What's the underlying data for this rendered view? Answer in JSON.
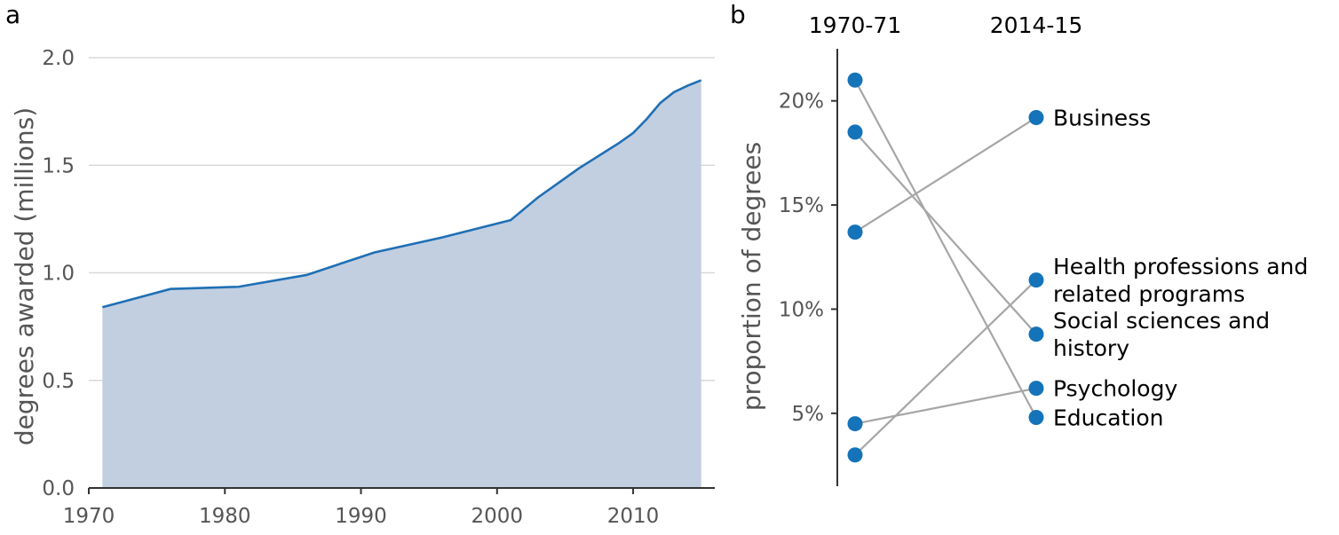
{
  "panel_a": {
    "tag": "a"
  },
  "panel_b": {
    "tag": "b"
  },
  "colors": {
    "area_fill": "#c2cfe1",
    "line": "#1f6fb4",
    "dot": "#1473b9",
    "slope": "#a6a6a6"
  },
  "chart_data": [
    {
      "type": "area",
      "xlabel": "",
      "ylabel": "degrees awarded (millions)",
      "xlim": [
        1970,
        2016
      ],
      "ylim": [
        0,
        2.0
      ],
      "xticks": [
        1970,
        1980,
        1990,
        2000,
        2010
      ],
      "yticks": [
        "0.0",
        "0.5",
        "1.0",
        "1.5",
        "2.0"
      ],
      "grid": "horizontal",
      "x": [
        1971,
        1976,
        1981,
        1986,
        1991,
        1996,
        2001,
        2003,
        2005,
        2006,
        2007,
        2008,
        2009,
        2010,
        2011,
        2012,
        2013,
        2014,
        2015
      ],
      "y": [
        0.84,
        0.925,
        0.935,
        0.99,
        1.095,
        1.165,
        1.245,
        1.35,
        1.44,
        1.485,
        1.525,
        1.565,
        1.605,
        1.65,
        1.715,
        1.79,
        1.84,
        1.87,
        1.895
      ]
    },
    {
      "type": "slope",
      "ylabel": "proportion of degrees",
      "columns": [
        "1970-71",
        "2014-15"
      ],
      "ylim": [
        1.5,
        22.5
      ],
      "yticks": [
        "5%",
        "10%",
        "15%",
        "20%"
      ],
      "series": [
        {
          "name": "Business",
          "label_lines": [
            "Business"
          ],
          "start": 13.7,
          "end": 19.2
        },
        {
          "name": "Health professions and related programs",
          "label_lines": [
            "Health professions and",
            "related programs"
          ],
          "start": 3.0,
          "end": 11.4
        },
        {
          "name": "Social sciences and history",
          "label_lines": [
            "Social sciences and",
            "history"
          ],
          "start": 18.5,
          "end": 8.8
        },
        {
          "name": "Psychology",
          "label_lines": [
            "Psychology"
          ],
          "start": 4.5,
          "end": 6.2
        },
        {
          "name": "Education",
          "label_lines": [
            "Education"
          ],
          "start": 21.0,
          "end": 4.8
        }
      ]
    }
  ]
}
